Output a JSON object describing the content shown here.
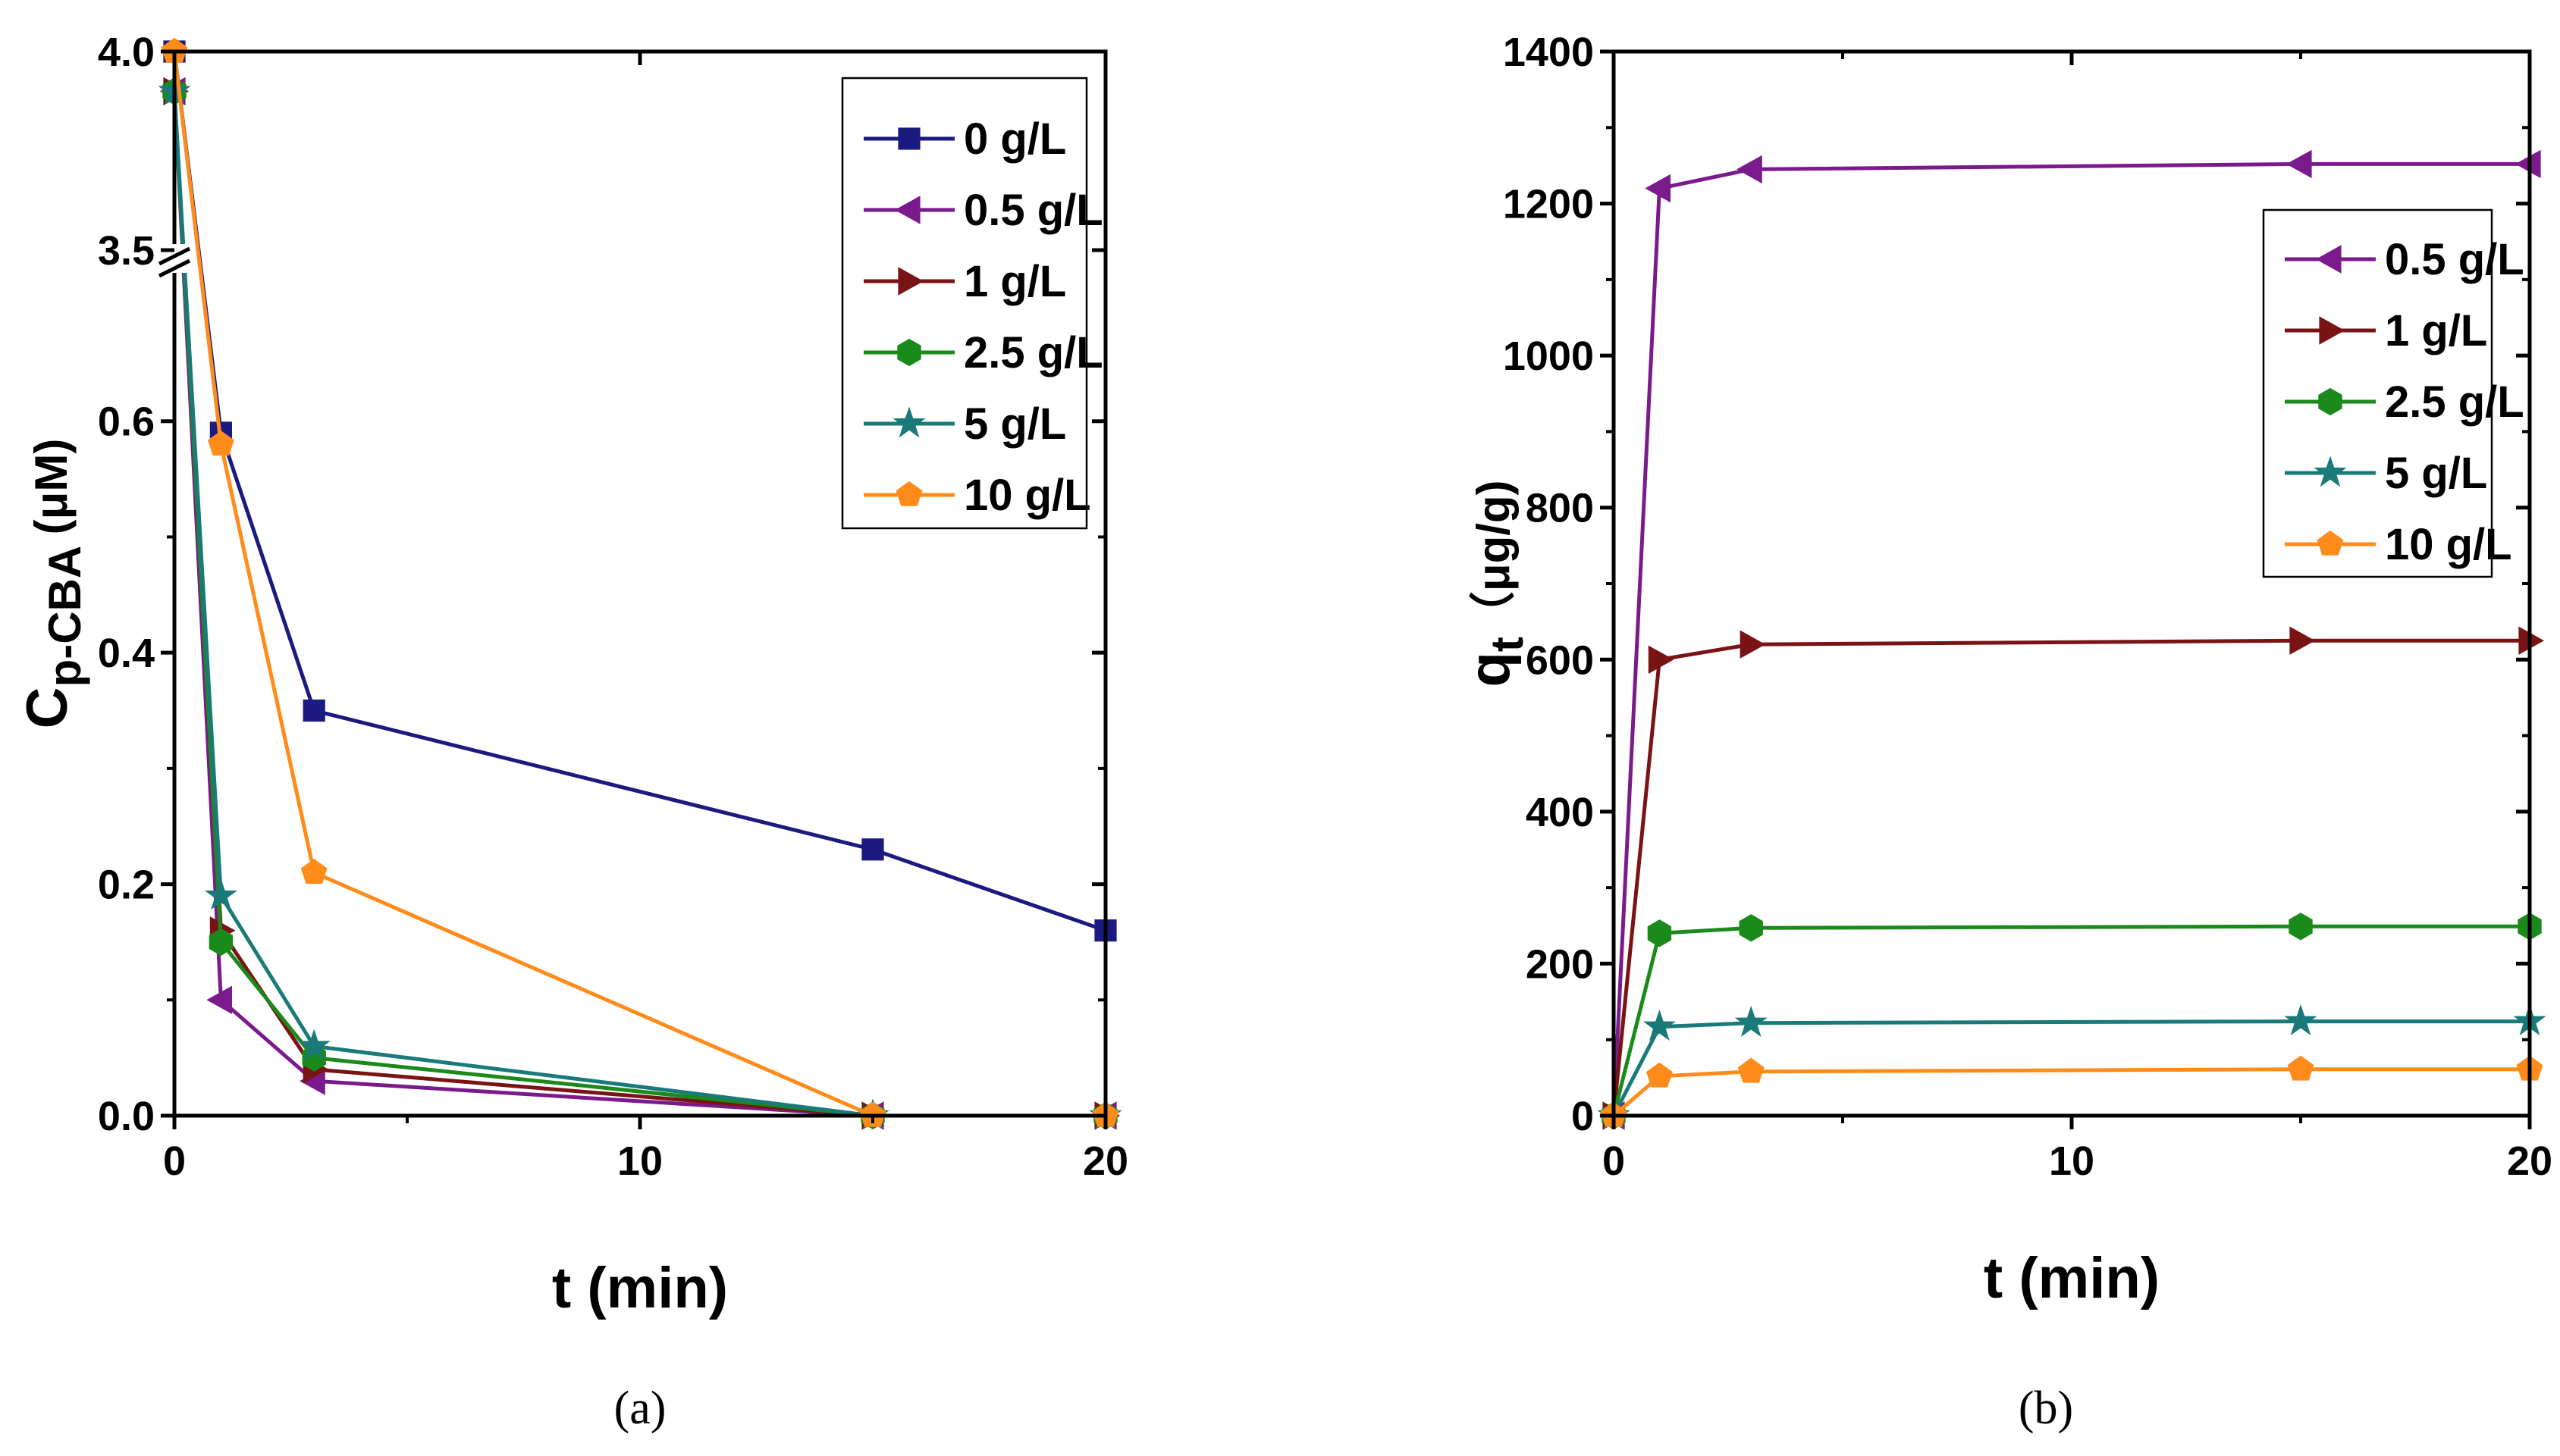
{
  "chart_data": [
    {
      "type": "line",
      "panel_label": "(a)",
      "xlabel": "t (min)",
      "ylabel": {
        "main": "C",
        "sub": "p-CBA",
        "unit": " (μM)"
      },
      "xlim": [
        0,
        20
      ],
      "ylim": [
        0,
        4.0
      ],
      "axis_break": {
        "lower_max": 0.7,
        "upper_min": 3.5,
        "upper_max": 4.0
      },
      "xticks": [
        "0",
        "10",
        "20"
      ],
      "yticks": [
        "0.0",
        "0.2",
        "0.4",
        "0.6",
        "3.5",
        "4.0"
      ],
      "x": [
        0,
        1,
        3,
        15,
        20
      ],
      "legend_position": "top-right",
      "series": [
        {
          "name": "0 g/L",
          "marker": "square",
          "color": "#1a1a80",
          "values": [
            4.0,
            0.59,
            0.35,
            0.23,
            0.16
          ]
        },
        {
          "name": "0.5 g/L",
          "marker": "triangle-left",
          "color": "#7b1a8c",
          "values": [
            3.9,
            0.1,
            0.03,
            0.0,
            0.0
          ]
        },
        {
          "name": "1 g/L",
          "marker": "triangle-right",
          "color": "#7a1414",
          "values": [
            3.9,
            0.16,
            0.04,
            0.0,
            0.0
          ]
        },
        {
          "name": "2.5 g/L",
          "marker": "hexagon",
          "color": "#1a8a1a",
          "values": [
            3.9,
            0.15,
            0.05,
            0.0,
            0.0
          ]
        },
        {
          "name": "5 g/L",
          "marker": "star",
          "color": "#1a7a7a",
          "values": [
            3.9,
            0.19,
            0.06,
            0.0,
            0.0
          ]
        },
        {
          "name": "10 g/L",
          "marker": "pentagon",
          "color": "#ff8c1a",
          "values": [
            4.0,
            0.58,
            0.21,
            0.0,
            0.0
          ]
        }
      ]
    },
    {
      "type": "line",
      "panel_label": "(b)",
      "xlabel": "t (min)",
      "ylabel": {
        "main": "q",
        "sub": "t",
        "unit": "（μg/g)"
      },
      "xlim": [
        0,
        20
      ],
      "ylim": [
        0,
        1400
      ],
      "xticks": [
        "0",
        "10",
        "20"
      ],
      "yticks": [
        "0",
        "200",
        "400",
        "600",
        "800",
        "1000",
        "1200",
        "1400"
      ],
      "x": [
        0,
        1,
        3,
        15,
        20
      ],
      "legend_position": "top-right",
      "series": [
        {
          "name": "0.5 g/L",
          "marker": "triangle-left",
          "color": "#7b1a8c",
          "values": [
            0,
            1220,
            1245,
            1252,
            1252
          ]
        },
        {
          "name": "1 g/L",
          "marker": "triangle-right",
          "color": "#7a1414",
          "values": [
            0,
            600,
            620,
            625,
            625
          ]
        },
        {
          "name": "2.5 g/L",
          "marker": "hexagon",
          "color": "#1a8a1a",
          "values": [
            0,
            240,
            247,
            249,
            249
          ]
        },
        {
          "name": "5 g/L",
          "marker": "star",
          "color": "#1a7a7a",
          "values": [
            0,
            117,
            122,
            124,
            124
          ]
        },
        {
          "name": "10 g/L",
          "marker": "pentagon",
          "color": "#ff8c1a",
          "values": [
            0,
            52,
            58,
            61,
            61
          ]
        }
      ]
    }
  ]
}
